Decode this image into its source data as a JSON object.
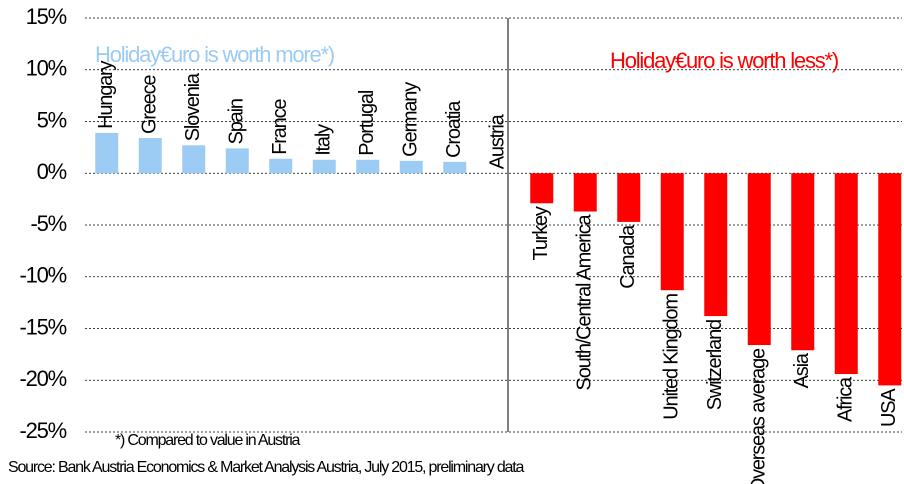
{
  "chart_data": {
    "type": "bar",
    "categories": [
      "Hungary",
      "Greece",
      "Slovenia",
      "Spain",
      "France",
      "Italy",
      "Portugal",
      "Germany",
      "Croatia",
      "Austria",
      "Turkey",
      "South/Central America",
      "Canada",
      "United Kingdom",
      "Switzerland",
      "Overseas average",
      "Asia",
      "Africa",
      "USA"
    ],
    "values": [
      3.9,
      3.4,
      2.7,
      2.4,
      1.4,
      1.3,
      1.3,
      1.2,
      1.1,
      0,
      -2.9,
      -3.7,
      -4.7,
      -11.3,
      -13.8,
      -16.6,
      -17.1,
      -19.4,
      -20.5
    ],
    "positive_color": "#9ccbf4",
    "negative_color": "#ff0000",
    "ylim": [
      -25,
      15
    ],
    "yticks": [
      {
        "value": -25,
        "label": "-25%"
      },
      {
        "value": -20,
        "label": "-20%"
      },
      {
        "value": -15,
        "label": "-15%"
      },
      {
        "value": -10,
        "label": "-10%"
      },
      {
        "value": -5,
        "label": "-5%"
      },
      {
        "value": 0,
        "label": "0%"
      },
      {
        "value": 5,
        "label": "5%"
      },
      {
        "value": 10,
        "label": "10%"
      },
      {
        "value": 15,
        "label": "15%"
      }
    ],
    "grid": true,
    "annotations": [
      "Holiday€uro is worth more*)",
      "Holiday€uro is worth less*)"
    ],
    "footnote": "*) Compared to value in Austria",
    "source": "Source: Bank Austria Economics & Market Analysis Austria, July 2015, preliminary data"
  }
}
